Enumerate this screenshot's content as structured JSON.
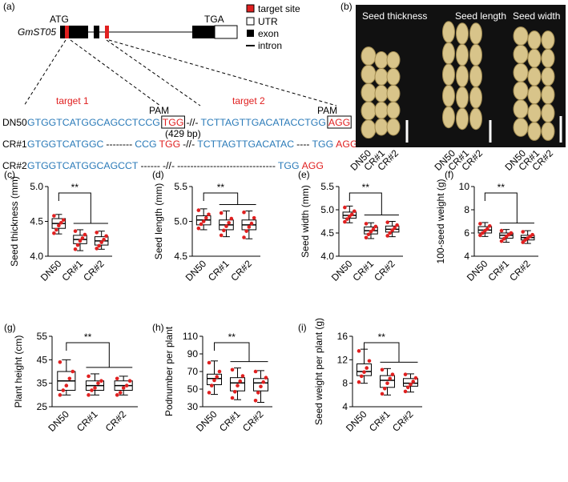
{
  "panel_a": {
    "label": "(a)",
    "gene": "GmST05",
    "start_codon": "ATG",
    "stop_codon": "TGA",
    "legend": [
      "target site",
      "UTR",
      "exon",
      "intron"
    ],
    "target_labels": [
      "target 1",
      "target 2"
    ],
    "pam_labels": [
      "PAM",
      "PAM"
    ],
    "gap_note": "(429 bp)",
    "colors": {
      "blue": "#2a7ab8",
      "red": "#e02020",
      "black": "#000000"
    },
    "rows": [
      {
        "name": "DN50",
        "segments": [
          {
            "text": "GTGGTCATGGCAGCCTCCG",
            "color": "blue"
          },
          {
            "text": "TGG",
            "color": "red",
            "boxed": true
          },
          {
            "text": "-//-",
            "color": "black"
          },
          {
            "text": "TCTTAGTTGACATACCTGG",
            "color": "blue"
          },
          {
            "text": "AGG",
            "color": "red",
            "boxed": true
          }
        ]
      },
      {
        "name": "CR#1",
        "segments": [
          {
            "text": "GTGGTCATGGC",
            "color": "blue"
          },
          {
            "text": "--------",
            "color": "black"
          },
          {
            "text": "CCG",
            "color": "blue"
          },
          {
            "text": "TGG",
            "color": "red"
          },
          {
            "text": "-//-",
            "color": "black"
          },
          {
            "text": "TCTTAGTTGACATAC",
            "color": "blue"
          },
          {
            "text": "----",
            "color": "black"
          },
          {
            "text": "TGG",
            "color": "blue"
          },
          {
            "text": "AGG",
            "color": "red"
          }
        ]
      },
      {
        "name": "CR#2",
        "segments": [
          {
            "text": "GTGGTCATGGCAGCCT",
            "color": "blue"
          },
          {
            "text": "------",
            "color": "black"
          },
          {
            "text": "-//-",
            "color": "black"
          },
          {
            "text": "------------------------------",
            "color": "black"
          },
          {
            "text": "TGG",
            "color": "blue"
          },
          {
            "text": "AGG",
            "color": "red"
          }
        ]
      }
    ]
  },
  "panel_b": {
    "label": "(b)",
    "titles": [
      "Seed thickness",
      "Seed length",
      "Seed width"
    ],
    "groups": [
      "DN50",
      "CR#1",
      "CR#2"
    ]
  },
  "chart_data": [
    {
      "type": "box",
      "label": "(c)",
      "ylabel": "Seed thickness (mm)",
      "ylim": [
        4.0,
        5.0
      ],
      "yticks": [
        {
          "value": 4,
          "label": "4.0"
        },
        4.5,
        {
          "value": 5,
          "label": "5.0"
        }
      ],
      "categories": [
        "DN50",
        "CR#1",
        "CR#2"
      ],
      "significance": "**",
      "box_color": "#000000",
      "point_color": "#e02020",
      "boxes": [
        {
          "min": 4.32,
          "q1": 4.4,
          "median": 4.47,
          "q3": 4.54,
          "max": 4.6,
          "points": [
            4.33,
            4.38,
            4.44,
            4.48,
            4.52,
            4.58
          ]
        },
        {
          "min": 4.08,
          "q1": 4.18,
          "median": 4.24,
          "q3": 4.3,
          "max": 4.38,
          "points": [
            4.1,
            4.16,
            4.22,
            4.26,
            4.31,
            4.36
          ]
        },
        {
          "min": 4.1,
          "q1": 4.16,
          "median": 4.22,
          "q3": 4.28,
          "max": 4.36,
          "points": [
            4.11,
            4.15,
            4.2,
            4.24,
            4.29,
            4.34
          ]
        }
      ]
    },
    {
      "type": "box",
      "label": "(d)",
      "ylabel": "Seed length (mm)",
      "ylim": [
        4.5,
        5.5
      ],
      "yticks": [
        4.5,
        {
          "value": 5,
          "label": "5.0"
        },
        5.5
      ],
      "categories": [
        "DN50",
        "CR#1",
        "CR#2"
      ],
      "significance": "**",
      "box_color": "#000000",
      "point_color": "#e02020",
      "boxes": [
        {
          "min": 4.88,
          "q1": 4.95,
          "median": 5.02,
          "q3": 5.08,
          "max": 5.18,
          "points": [
            4.9,
            4.96,
            5.0,
            5.05,
            5.1,
            5.16
          ]
        },
        {
          "min": 4.78,
          "q1": 4.88,
          "median": 4.95,
          "q3": 5.02,
          "max": 5.15,
          "points": [
            4.8,
            4.87,
            4.93,
            4.98,
            5.04,
            5.12
          ]
        },
        {
          "min": 4.75,
          "q1": 4.88,
          "median": 4.95,
          "q3": 5.02,
          "max": 5.15,
          "points": [
            4.77,
            4.86,
            4.92,
            4.97,
            5.05,
            5.13
          ]
        }
      ]
    },
    {
      "type": "box",
      "label": "(e)",
      "ylabel": "Seed width (mm)",
      "ylim": [
        4.0,
        5.5
      ],
      "yticks": [
        {
          "value": 4,
          "label": "4.0"
        },
        4.5,
        {
          "value": 5,
          "label": "5.0"
        },
        5.5
      ],
      "categories": [
        "DN50",
        "CR#1",
        "CR#2"
      ],
      "significance": "**",
      "box_color": "#000000",
      "point_color": "#e02020",
      "boxes": [
        {
          "min": 4.72,
          "q1": 4.82,
          "median": 4.88,
          "q3": 4.95,
          "max": 5.08,
          "points": [
            4.74,
            4.8,
            4.86,
            4.9,
            4.97,
            5.05
          ]
        },
        {
          "min": 4.38,
          "q1": 4.48,
          "median": 4.55,
          "q3": 4.63,
          "max": 4.72,
          "points": [
            4.4,
            4.47,
            4.53,
            4.58,
            4.64,
            4.7
          ]
        },
        {
          "min": 4.42,
          "q1": 4.52,
          "median": 4.58,
          "q3": 4.65,
          "max": 4.75,
          "points": [
            4.44,
            4.5,
            4.56,
            4.61,
            4.67,
            4.73
          ]
        }
      ]
    },
    {
      "type": "box",
      "label": "(f)",
      "ylabel": "100-seed weight (g)",
      "ylim": [
        4,
        10
      ],
      "yticks": [
        4,
        6,
        8,
        10
      ],
      "categories": [
        "DN50",
        "CR#1",
        "CR#2"
      ],
      "significance": "**",
      "box_color": "#000000",
      "point_color": "#e02020",
      "boxes": [
        {
          "min": 5.7,
          "q1": 6.0,
          "median": 6.25,
          "q3": 6.55,
          "max": 6.9,
          "points": [
            5.8,
            6.0,
            6.2,
            6.35,
            6.6,
            6.8
          ]
        },
        {
          "min": 5.2,
          "q1": 5.55,
          "median": 5.8,
          "q3": 6.0,
          "max": 6.3,
          "points": [
            5.3,
            5.5,
            5.7,
            5.85,
            6.0,
            6.2
          ]
        },
        {
          "min": 5.1,
          "q1": 5.4,
          "median": 5.6,
          "q3": 5.8,
          "max": 6.2,
          "points": [
            5.2,
            5.4,
            5.55,
            5.7,
            5.85,
            6.1
          ]
        }
      ]
    },
    {
      "type": "box",
      "label": "(g)",
      "ylabel": "Plant height (cm)",
      "ylim": [
        25,
        55
      ],
      "yticks": [
        25,
        35,
        45,
        55
      ],
      "categories": [
        "DN50",
        "CR#1",
        "CR#2"
      ],
      "significance": "**",
      "box_color": "#000000",
      "point_color": "#e02020",
      "boxes": [
        {
          "min": 30,
          "q1": 32,
          "median": 36,
          "q3": 40,
          "max": 45,
          "points": [
            30,
            32,
            34,
            37,
            40,
            44
          ]
        },
        {
          "min": 30,
          "q1": 32,
          "median": 34,
          "q3": 36,
          "max": 39,
          "points": [
            30,
            32,
            33,
            35,
            36,
            38
          ]
        },
        {
          "min": 30,
          "q1": 32,
          "median": 34,
          "q3": 36,
          "max": 38,
          "points": [
            30,
            31,
            33,
            34,
            36,
            37
          ]
        }
      ]
    },
    {
      "type": "box",
      "label": "(h)",
      "ylabel": "Podnumber per plant",
      "ylim": [
        30,
        110
      ],
      "yticks": [
        30,
        50,
        70,
        90,
        110
      ],
      "categories": [
        "DN50",
        "CR#1",
        "CR#2"
      ],
      "significance": "**",
      "box_color": "#000000",
      "point_color": "#e02020",
      "boxes": [
        {
          "min": 44,
          "q1": 55,
          "median": 62,
          "q3": 67,
          "max": 82,
          "points": [
            46,
            54,
            60,
            64,
            70,
            80
          ]
        },
        {
          "min": 38,
          "q1": 48,
          "median": 57,
          "q3": 63,
          "max": 74,
          "points": [
            40,
            47,
            54,
            59,
            65,
            72
          ]
        },
        {
          "min": 35,
          "q1": 48,
          "median": 57,
          "q3": 62,
          "max": 71,
          "points": [
            37,
            46,
            53,
            58,
            63,
            70
          ]
        }
      ]
    },
    {
      "type": "box",
      "label": "(i)",
      "ylabel": "Seed weight per plant (g)",
      "ylim": [
        4,
        16
      ],
      "yticks": [
        4,
        8,
        12,
        16
      ],
      "categories": [
        "DN50",
        "CR#1",
        "CR#2"
      ],
      "significance": "**",
      "box_color": "#000000",
      "point_color": "#e02020",
      "boxes": [
        {
          "min": 8,
          "q1": 9.3,
          "median": 10,
          "q3": 11.3,
          "max": 13.8,
          "points": [
            8.2,
            9.2,
            9.9,
            10.6,
            11.8,
            13.5
          ]
        },
        {
          "min": 6,
          "q1": 7.3,
          "median": 8.5,
          "q3": 9.3,
          "max": 10.5,
          "points": [
            6.2,
            7.1,
            8.0,
            8.8,
            9.5,
            10.3
          ]
        },
        {
          "min": 6.5,
          "q1": 7.5,
          "median": 8,
          "q3": 8.8,
          "max": 9.6,
          "points": [
            6.6,
            7.3,
            7.8,
            8.3,
            8.9,
            9.5
          ]
        }
      ]
    }
  ]
}
